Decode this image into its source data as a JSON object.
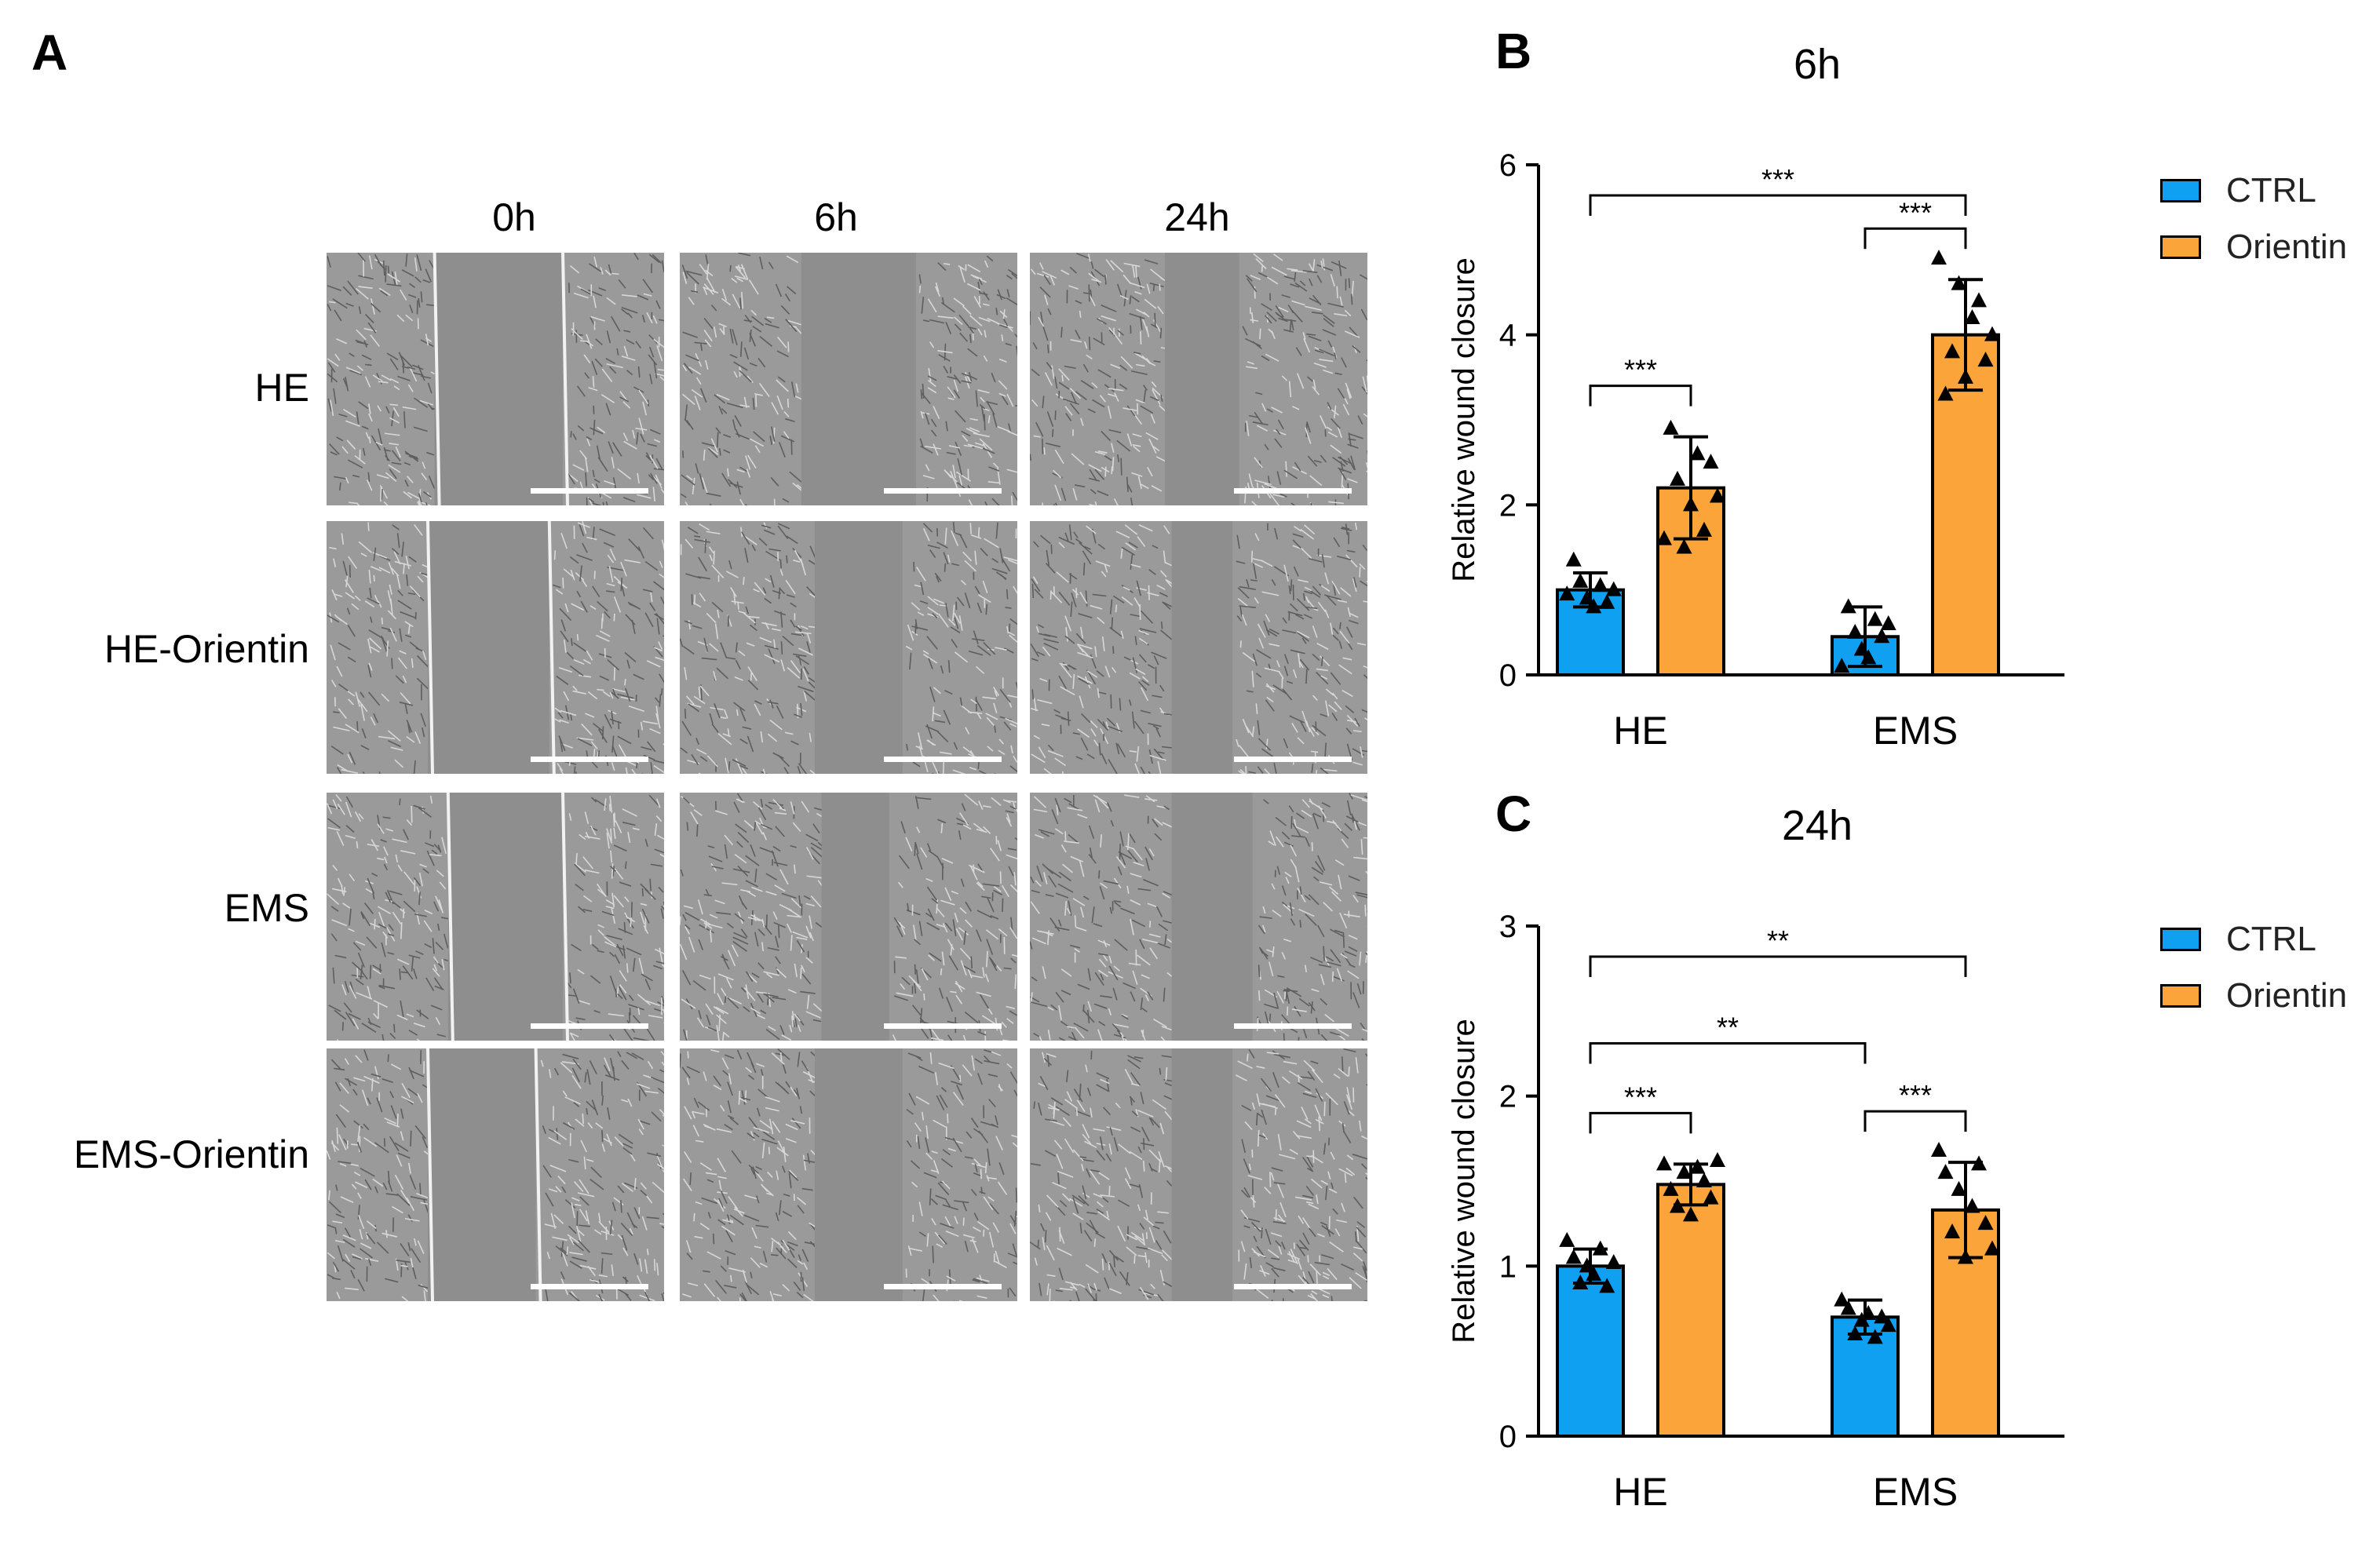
{
  "panels": {
    "a": "A",
    "b": "B",
    "c": "C"
  },
  "micrographs": {
    "columns": [
      "0h",
      "6h",
      "24h"
    ],
    "rows": [
      "HE",
      "HE-Orientin",
      "EMS",
      "EMS-Orientin"
    ]
  },
  "legend": {
    "items": [
      {
        "label": "CTRL",
        "color": "#0fa0f2"
      },
      {
        "label": "Orientin",
        "color": "#faa43a"
      }
    ]
  },
  "chart_data": [
    {
      "type": "bar",
      "title": "6h",
      "ylabel": "Relative  wound  closure",
      "ylim": [
        0,
        6
      ],
      "yticks": [
        0,
        2,
        4,
        6
      ],
      "categories": [
        "HE",
        "EMS"
      ],
      "series": [
        {
          "name": "CTRL",
          "color": "#0fa0f2",
          "values": [
            1.0,
            0.45
          ],
          "sd": [
            0.2,
            0.35
          ],
          "points": [
            [
              0.95,
              1.35,
              1.1,
              0.9,
              0.8,
              1.05,
              0.85,
              1.0
            ],
            [
              0.1,
              0.8,
              0.5,
              0.3,
              0.2,
              0.65,
              0.45,
              0.6
            ]
          ]
        },
        {
          "name": "Orientin",
          "color": "#faa43a",
          "values": [
            2.2,
            4.0
          ],
          "sd": [
            0.6,
            0.65
          ],
          "points": [
            [
              1.6,
              2.9,
              2.3,
              1.5,
              2.0,
              2.6,
              1.7,
              2.5,
              2.1
            ],
            [
              4.9,
              3.3,
              3.8,
              4.6,
              3.5,
              4.2,
              4.4,
              3.7,
              4.0
            ]
          ]
        }
      ],
      "significance": [
        {
          "label": "***",
          "from": [
            0,
            0
          ],
          "to": [
            1,
            1
          ]
        },
        {
          "label": "***",
          "from": [
            1,
            0
          ],
          "to": [
            1,
            1
          ]
        },
        {
          "label": "***",
          "from": [
            0,
            0
          ],
          "to": [
            0,
            1
          ]
        }
      ]
    },
    {
      "type": "bar",
      "title": "24h",
      "ylabel": "Relative  wound  closure",
      "ylim": [
        0,
        3
      ],
      "yticks": [
        0,
        1,
        2,
        3
      ],
      "categories": [
        "HE",
        "EMS"
      ],
      "series": [
        {
          "name": "CTRL",
          "color": "#0fa0f2",
          "values": [
            1.0,
            0.7
          ],
          "sd": [
            0.1,
            0.1
          ],
          "points": [
            [
              1.15,
              1.05,
              0.9,
              1.0,
              0.95,
              1.1,
              0.88,
              1.02
            ],
            [
              0.8,
              0.75,
              0.6,
              0.68,
              0.72,
              0.58,
              0.7,
              0.65
            ]
          ]
        },
        {
          "name": "Orientin",
          "color": "#faa43a",
          "values": [
            1.48,
            1.33
          ],
          "sd": [
            0.12,
            0.28
          ],
          "points": [
            [
              1.6,
              1.45,
              1.35,
              1.55,
              1.3,
              1.58,
              1.5,
              1.4,
              1.62
            ],
            [
              1.68,
              1.55,
              1.2,
              1.45,
              1.05,
              1.35,
              1.6,
              1.25,
              1.1
            ]
          ]
        }
      ],
      "significance": [
        {
          "label": "**",
          "from": [
            0,
            0
          ],
          "to": [
            1,
            1
          ]
        },
        {
          "label": "**",
          "from": [
            0,
            0
          ],
          "to": [
            1,
            0
          ]
        },
        {
          "label": "***",
          "from": [
            0,
            0
          ],
          "to": [
            0,
            1
          ]
        },
        {
          "label": "***",
          "from": [
            1,
            0
          ],
          "to": [
            1,
            1
          ]
        }
      ]
    }
  ]
}
